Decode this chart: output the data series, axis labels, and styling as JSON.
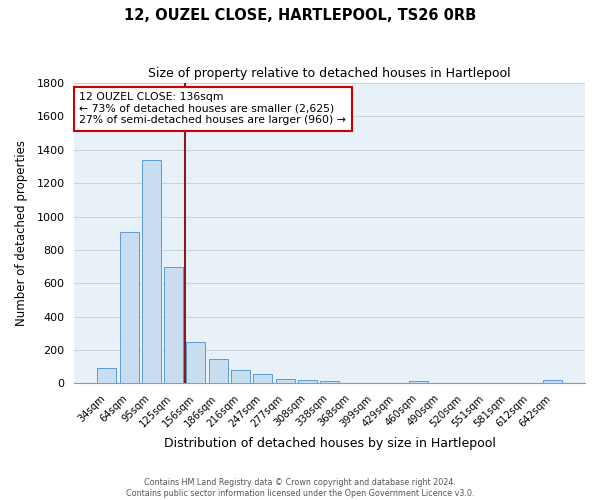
{
  "title": "12, OUZEL CLOSE, HARTLEPOOL, TS26 0RB",
  "subtitle": "Size of property relative to detached houses in Hartlepool",
  "xlabel": "Distribution of detached houses by size in Hartlepool",
  "ylabel": "Number of detached properties",
  "bar_labels": [
    "34sqm",
    "64sqm",
    "95sqm",
    "125sqm",
    "156sqm",
    "186sqm",
    "216sqm",
    "247sqm",
    "277sqm",
    "308sqm",
    "338sqm",
    "368sqm",
    "399sqm",
    "429sqm",
    "460sqm",
    "490sqm",
    "520sqm",
    "551sqm",
    "581sqm",
    "612sqm",
    "642sqm"
  ],
  "bar_values": [
    90,
    910,
    1340,
    700,
    250,
    145,
    80,
    55,
    25,
    20,
    15,
    0,
    0,
    0,
    15,
    0,
    0,
    0,
    0,
    0,
    20
  ],
  "bar_color": "#c9ddf0",
  "bar_edge_color": "#5b9bd5",
  "vline_color": "#8b1a1a",
  "ylim": [
    0,
    1800
  ],
  "yticks": [
    0,
    200,
    400,
    600,
    800,
    1000,
    1200,
    1400,
    1600,
    1800
  ],
  "annotation_title": "12 OUZEL CLOSE: 136sqm",
  "annotation_line1": "← 73% of detached houses are smaller (2,625)",
  "annotation_line2": "27% of semi-detached houses are larger (960) →",
  "annotation_box_color": "#ffffff",
  "annotation_box_edge": "#cc0000",
  "footer_line1": "Contains HM Land Registry data © Crown copyright and database right 2024.",
  "footer_line2": "Contains public sector information licensed under the Open Government Licence v3.0.",
  "fig_background": "#ffffff",
  "plot_background": "#e8f0f8",
  "grid_color": "#c8d4e0"
}
